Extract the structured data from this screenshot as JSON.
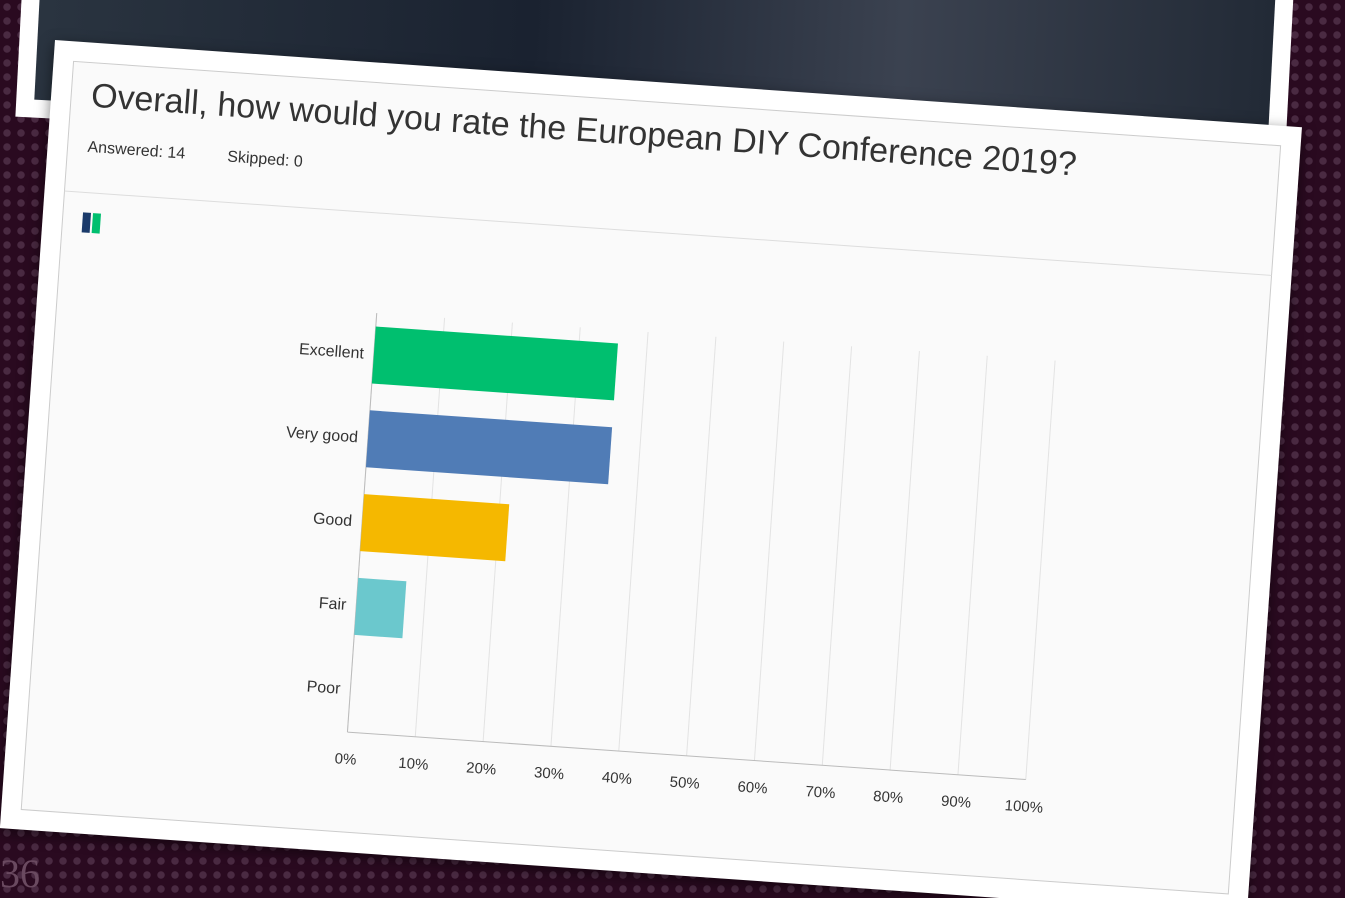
{
  "chart_data": {
    "type": "hbar",
    "title": "Overall, how would you rate the European DIY Conference 2019?",
    "answered": "Answered: 14",
    "skipped": "Skipped: 0",
    "categories": [
      "Excellent",
      "Very good",
      "Good",
      "Fair",
      "Poor"
    ],
    "values": [
      35.7,
      35.7,
      21.4,
      7.1,
      0
    ],
    "colors": [
      "#00bf6f",
      "#507cb6",
      "#f5b800",
      "#6bc8cd",
      "#a0a0a0"
    ],
    "xlim": [
      0,
      100
    ],
    "xticks": [
      {
        "value": 0,
        "label": "0%"
      },
      {
        "value": 10,
        "label": "10%"
      },
      {
        "value": 20,
        "label": "20%"
      },
      {
        "value": 30,
        "label": "30%"
      },
      {
        "value": 40,
        "label": "40%"
      },
      {
        "value": 50,
        "label": "50%"
      },
      {
        "value": 60,
        "label": "60%"
      },
      {
        "value": 70,
        "label": "70%"
      },
      {
        "value": 80,
        "label": "80%"
      },
      {
        "value": 90,
        "label": "90%"
      },
      {
        "value": 100,
        "label": "100%"
      }
    ],
    "grid": true
  },
  "page_number": "36"
}
